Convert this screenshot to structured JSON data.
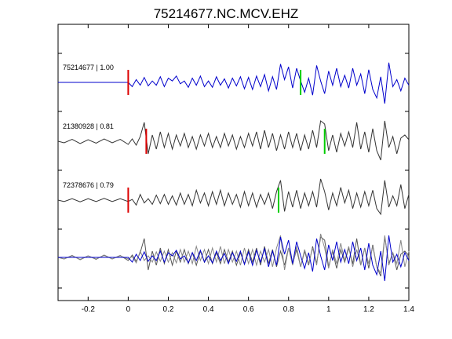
{
  "chart_data": {
    "type": "line",
    "title": "75214677.NC.MCV.EHZ",
    "xlim": [
      -0.35,
      1.4
    ],
    "x_ticks": [
      "-0.2",
      "0",
      "0.2",
      "0.4",
      "0.6",
      "0.8",
      "1",
      "1.2",
      "1.4"
    ],
    "x_tick_values": [
      -0.2,
      0,
      0.2,
      0.4,
      0.6,
      0.8,
      1.0,
      1.2,
      1.4
    ],
    "grid": false,
    "series": [
      {
        "name": "75214677 | 1.00",
        "color": "#0000cc",
        "red_pick": 0.0,
        "green_pick": 0.86,
        "start": -0.35,
        "onset": 0.0,
        "waveform": [
          [
            0.0,
            0.0
          ],
          [
            0.02,
            -0.3
          ],
          [
            0.04,
            0.2
          ],
          [
            0.06,
            -0.2
          ],
          [
            0.08,
            0.35
          ],
          [
            0.1,
            -0.25
          ],
          [
            0.12,
            0.1
          ],
          [
            0.14,
            -0.2
          ],
          [
            0.16,
            0.4
          ],
          [
            0.18,
            -0.3
          ],
          [
            0.2,
            0.3
          ],
          [
            0.22,
            0.1
          ],
          [
            0.24,
            0.45
          ],
          [
            0.26,
            -0.1
          ],
          [
            0.28,
            0.1
          ],
          [
            0.3,
            -0.35
          ],
          [
            0.32,
            0.3
          ],
          [
            0.34,
            -0.2
          ],
          [
            0.36,
            0.45
          ],
          [
            0.38,
            -0.3
          ],
          [
            0.4,
            0.1
          ],
          [
            0.42,
            -0.35
          ],
          [
            0.44,
            0.4
          ],
          [
            0.46,
            -0.2
          ],
          [
            0.48,
            0.25
          ],
          [
            0.5,
            -0.4
          ],
          [
            0.52,
            0.3
          ],
          [
            0.54,
            -0.25
          ],
          [
            0.56,
            0.4
          ],
          [
            0.58,
            -0.45
          ],
          [
            0.6,
            0.35
          ],
          [
            0.62,
            -0.5
          ],
          [
            0.64,
            0.45
          ],
          [
            0.66,
            -0.3
          ],
          [
            0.68,
            0.55
          ],
          [
            0.7,
            -0.6
          ],
          [
            0.72,
            0.4
          ],
          [
            0.74,
            -0.5
          ],
          [
            0.76,
            1.3
          ],
          [
            0.78,
            0.2
          ],
          [
            0.8,
            1.1
          ],
          [
            0.82,
            -0.4
          ],
          [
            0.84,
            1.0
          ],
          [
            0.86,
            0.1
          ],
          [
            0.88,
            -0.7
          ],
          [
            0.9,
            0.3
          ],
          [
            0.92,
            -0.9
          ],
          [
            0.94,
            1.2
          ],
          [
            0.96,
            0.1
          ],
          [
            0.98,
            -0.8
          ],
          [
            1.0,
            0.8
          ],
          [
            1.02,
            -0.2
          ],
          [
            1.04,
            1.0
          ],
          [
            1.06,
            -0.3
          ],
          [
            1.08,
            0.5
          ],
          [
            1.1,
            -0.4
          ],
          [
            1.12,
            1.0
          ],
          [
            1.14,
            -0.2
          ],
          [
            1.16,
            0.6
          ],
          [
            1.18,
            -0.8
          ],
          [
            1.2,
            0.9
          ],
          [
            1.22,
            -0.5
          ],
          [
            1.24,
            -1.1
          ],
          [
            1.26,
            0.4
          ],
          [
            1.28,
            -1.5
          ],
          [
            1.3,
            1.4
          ],
          [
            1.32,
            -0.3
          ],
          [
            1.34,
            0.2
          ],
          [
            1.36,
            -0.6
          ],
          [
            1.38,
            0.3
          ],
          [
            1.4,
            -0.2
          ]
        ]
      },
      {
        "name": "21380928 | 0.81",
        "color": "#333333",
        "red_pick": 0.09,
        "green_pick": 0.98,
        "start": -0.35,
        "onset": -0.35,
        "waveform": [
          [
            -0.35,
            0.0
          ],
          [
            -0.32,
            -0.1
          ],
          [
            -0.28,
            0.12
          ],
          [
            -0.24,
            -0.15
          ],
          [
            -0.2,
            0.1
          ],
          [
            -0.16,
            -0.12
          ],
          [
            -0.12,
            0.15
          ],
          [
            -0.08,
            -0.1
          ],
          [
            -0.04,
            0.12
          ],
          [
            0.0,
            -0.2
          ],
          [
            0.02,
            0.15
          ],
          [
            0.04,
            -0.25
          ],
          [
            0.06,
            0.3
          ],
          [
            0.08,
            1.2
          ],
          [
            0.1,
            -0.8
          ],
          [
            0.12,
            0.4
          ],
          [
            0.14,
            -0.5
          ],
          [
            0.16,
            0.6
          ],
          [
            0.18,
            -0.4
          ],
          [
            0.2,
            0.5
          ],
          [
            0.22,
            -0.5
          ],
          [
            0.24,
            0.4
          ],
          [
            0.26,
            -0.3
          ],
          [
            0.28,
            0.5
          ],
          [
            0.3,
            -0.4
          ],
          [
            0.32,
            0.3
          ],
          [
            0.34,
            -0.5
          ],
          [
            0.36,
            0.4
          ],
          [
            0.38,
            -0.3
          ],
          [
            0.4,
            0.5
          ],
          [
            0.42,
            -0.4
          ],
          [
            0.44,
            0.3
          ],
          [
            0.46,
            -0.4
          ],
          [
            0.48,
            0.5
          ],
          [
            0.5,
            -0.3
          ],
          [
            0.52,
            0.4
          ],
          [
            0.54,
            -0.5
          ],
          [
            0.56,
            0.3
          ],
          [
            0.58,
            -0.4
          ],
          [
            0.6,
            0.5
          ],
          [
            0.62,
            -0.3
          ],
          [
            0.64,
            0.6
          ],
          [
            0.66,
            -0.5
          ],
          [
            0.68,
            0.7
          ],
          [
            0.7,
            -0.4
          ],
          [
            0.72,
            0.5
          ],
          [
            0.74,
            -0.6
          ],
          [
            0.76,
            0.4
          ],
          [
            0.78,
            -0.5
          ],
          [
            0.8,
            0.6
          ],
          [
            0.82,
            -0.4
          ],
          [
            0.84,
            0.5
          ],
          [
            0.86,
            -0.6
          ],
          [
            0.88,
            0.4
          ],
          [
            0.9,
            -0.5
          ],
          [
            0.92,
            0.7
          ],
          [
            0.94,
            -0.4
          ],
          [
            0.96,
            1.3
          ],
          [
            0.98,
            1.1
          ],
          [
            1.0,
            -0.6
          ],
          [
            1.02,
            0.4
          ],
          [
            1.04,
            -0.7
          ],
          [
            1.06,
            0.5
          ],
          [
            1.08,
            -0.3
          ],
          [
            1.1,
            0.6
          ],
          [
            1.12,
            -0.4
          ],
          [
            1.14,
            1.2
          ],
          [
            1.16,
            -0.5
          ],
          [
            1.18,
            0.6
          ],
          [
            1.2,
            -0.7
          ],
          [
            1.22,
            0.8
          ],
          [
            1.24,
            -0.6
          ],
          [
            1.26,
            -1.2
          ],
          [
            1.28,
            1.3
          ],
          [
            1.3,
            -0.4
          ],
          [
            1.32,
            0.3
          ],
          [
            1.34,
            -0.8
          ],
          [
            1.36,
            0.2
          ],
          [
            1.38,
            0.4
          ],
          [
            1.4,
            0.1
          ]
        ]
      },
      {
        "name": "72378676 | 0.79",
        "color": "#333333",
        "red_pick": 0.0,
        "green_pick": 0.75,
        "start": -0.35,
        "onset": -0.35,
        "waveform": [
          [
            -0.35,
            0.0
          ],
          [
            -0.32,
            -0.1
          ],
          [
            -0.28,
            0.1
          ],
          [
            -0.24,
            -0.12
          ],
          [
            -0.2,
            0.1
          ],
          [
            -0.16,
            -0.1
          ],
          [
            -0.12,
            0.12
          ],
          [
            -0.08,
            -0.1
          ],
          [
            -0.04,
            0.1
          ],
          [
            0.0,
            -0.1
          ],
          [
            0.02,
            0.05
          ],
          [
            0.04,
            -0.35
          ],
          [
            0.06,
            0.4
          ],
          [
            0.08,
            -0.2
          ],
          [
            0.1,
            0.1
          ],
          [
            0.12,
            -0.3
          ],
          [
            0.14,
            0.35
          ],
          [
            0.16,
            -0.25
          ],
          [
            0.18,
            0.4
          ],
          [
            0.2,
            -0.3
          ],
          [
            0.22,
            0.3
          ],
          [
            0.24,
            -0.35
          ],
          [
            0.26,
            0.5
          ],
          [
            0.28,
            -0.3
          ],
          [
            0.3,
            0.4
          ],
          [
            0.32,
            -0.4
          ],
          [
            0.34,
            0.7
          ],
          [
            0.36,
            -0.2
          ],
          [
            0.38,
            0.5
          ],
          [
            0.4,
            -0.4
          ],
          [
            0.42,
            0.6
          ],
          [
            0.44,
            -0.3
          ],
          [
            0.46,
            0.7
          ],
          [
            0.48,
            -0.4
          ],
          [
            0.5,
            0.5
          ],
          [
            0.52,
            -0.3
          ],
          [
            0.54,
            0.4
          ],
          [
            0.56,
            -0.5
          ],
          [
            0.58,
            0.6
          ],
          [
            0.6,
            -0.4
          ],
          [
            0.62,
            0.5
          ],
          [
            0.64,
            -0.5
          ],
          [
            0.66,
            0.4
          ],
          [
            0.68,
            -0.3
          ],
          [
            0.7,
            0.5
          ],
          [
            0.72,
            -0.6
          ],
          [
            0.74,
            0.6
          ],
          [
            0.76,
            1.4
          ],
          [
            0.78,
            -0.8
          ],
          [
            0.8,
            0.6
          ],
          [
            0.82,
            -0.5
          ],
          [
            0.84,
            0.7
          ],
          [
            0.86,
            -0.6
          ],
          [
            0.88,
            0.5
          ],
          [
            0.9,
            -0.4
          ],
          [
            0.92,
            0.6
          ],
          [
            0.94,
            -0.5
          ],
          [
            0.96,
            1.5
          ],
          [
            0.98,
            0.6
          ],
          [
            1.0,
            -0.7
          ],
          [
            1.02,
            0.5
          ],
          [
            1.04,
            -0.4
          ],
          [
            1.06,
            0.9
          ],
          [
            1.08,
            -0.2
          ],
          [
            1.1,
            0.7
          ],
          [
            1.12,
            -0.6
          ],
          [
            1.14,
            0.5
          ],
          [
            1.16,
            -0.5
          ],
          [
            1.18,
            0.6
          ],
          [
            1.2,
            -0.4
          ],
          [
            1.22,
            0.7
          ],
          [
            1.24,
            -0.6
          ],
          [
            1.26,
            -1.0
          ],
          [
            1.28,
            1.4
          ],
          [
            1.3,
            -0.5
          ],
          [
            1.32,
            0.3
          ],
          [
            1.34,
            -0.4
          ],
          [
            1.36,
            1.1
          ],
          [
            1.38,
            -0.6
          ],
          [
            1.4,
            0.4
          ]
        ]
      }
    ]
  }
}
